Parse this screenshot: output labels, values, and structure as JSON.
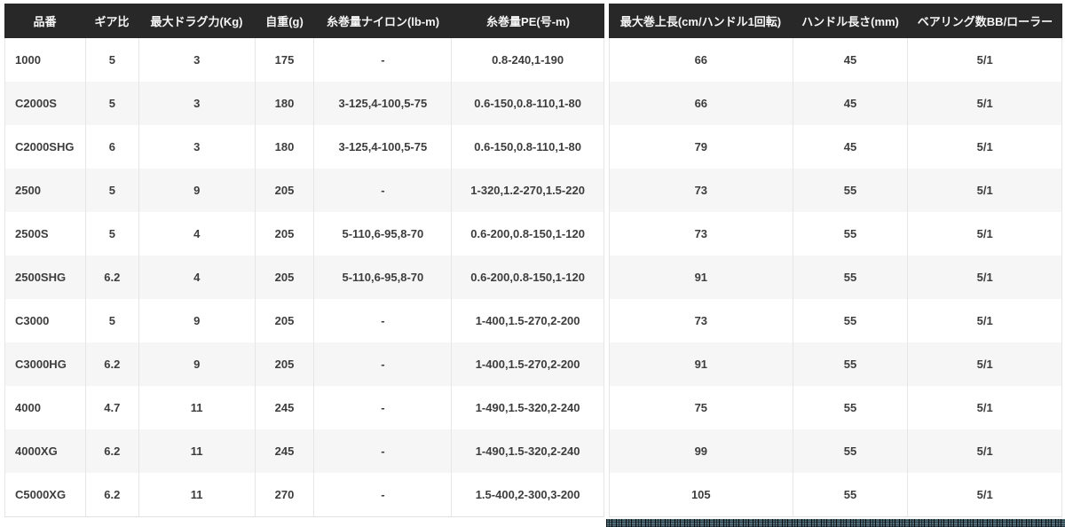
{
  "colors": {
    "header_bg": "#282828",
    "header_text": "#f5f5f5",
    "row_alt_bg": "#f6f6f6",
    "body_text": "#3d3d3d",
    "grid_border": "#e6e6e6",
    "noise_strip_base": "#54707c"
  },
  "left_table": {
    "columns": [
      {
        "key": "model",
        "label": "品番"
      },
      {
        "key": "gear_ratio",
        "label": "ギア比"
      },
      {
        "key": "max_drag_kg",
        "label": "最大ドラグ力(Kg)"
      },
      {
        "key": "weight_g",
        "label": "自重(g)"
      },
      {
        "key": "nylon_capacity_lb_m",
        "label": "糸巻量ナイロン(lb-m)"
      },
      {
        "key": "pe_capacity_go_m",
        "label": "糸巻量PE(号-m)"
      }
    ]
  },
  "right_table": {
    "columns": [
      {
        "key": "max_retrieve_cm",
        "label": "最大巻上長(cm/ハンドル1回転)"
      },
      {
        "key": "handle_length_mm",
        "label": "ハンドル長さ(mm)"
      },
      {
        "key": "bearings_bb_roller",
        "label": "ベアリング数BB/ローラー"
      }
    ]
  },
  "rows": [
    {
      "model": "1000",
      "gear_ratio": "5",
      "max_drag_kg": "3",
      "weight_g": "175",
      "nylon_capacity_lb_m": "-",
      "pe_capacity_go_m": "0.8-240,1-190",
      "max_retrieve_cm": "66",
      "handle_length_mm": "45",
      "bearings_bb_roller": "5/1"
    },
    {
      "model": "C2000S",
      "gear_ratio": "5",
      "max_drag_kg": "3",
      "weight_g": "180",
      "nylon_capacity_lb_m": "3-125,4-100,5-75",
      "pe_capacity_go_m": "0.6-150,0.8-110,1-80",
      "max_retrieve_cm": "66",
      "handle_length_mm": "45",
      "bearings_bb_roller": "5/1"
    },
    {
      "model": "C2000SHG",
      "gear_ratio": "6",
      "max_drag_kg": "3",
      "weight_g": "180",
      "nylon_capacity_lb_m": "3-125,4-100,5-75",
      "pe_capacity_go_m": "0.6-150,0.8-110,1-80",
      "max_retrieve_cm": "79",
      "handle_length_mm": "45",
      "bearings_bb_roller": "5/1"
    },
    {
      "model": "2500",
      "gear_ratio": "5",
      "max_drag_kg": "9",
      "weight_g": "205",
      "nylon_capacity_lb_m": "-",
      "pe_capacity_go_m": "1-320,1.2-270,1.5-220",
      "max_retrieve_cm": "73",
      "handle_length_mm": "55",
      "bearings_bb_roller": "5/1"
    },
    {
      "model": "2500S",
      "gear_ratio": "5",
      "max_drag_kg": "4",
      "weight_g": "205",
      "nylon_capacity_lb_m": "5-110,6-95,8-70",
      "pe_capacity_go_m": "0.6-200,0.8-150,1-120",
      "max_retrieve_cm": "73",
      "handle_length_mm": "55",
      "bearings_bb_roller": "5/1"
    },
    {
      "model": "2500SHG",
      "gear_ratio": "6.2",
      "max_drag_kg": "4",
      "weight_g": "205",
      "nylon_capacity_lb_m": "5-110,6-95,8-70",
      "pe_capacity_go_m": "0.6-200,0.8-150,1-120",
      "max_retrieve_cm": "91",
      "handle_length_mm": "55",
      "bearings_bb_roller": "5/1"
    },
    {
      "model": "C3000",
      "gear_ratio": "5",
      "max_drag_kg": "9",
      "weight_g": "205",
      "nylon_capacity_lb_m": "-",
      "pe_capacity_go_m": "1-400,1.5-270,2-200",
      "max_retrieve_cm": "73",
      "handle_length_mm": "55",
      "bearings_bb_roller": "5/1"
    },
    {
      "model": "C3000HG",
      "gear_ratio": "6.2",
      "max_drag_kg": "9",
      "weight_g": "205",
      "nylon_capacity_lb_m": "-",
      "pe_capacity_go_m": "1-400,1.5-270,2-200",
      "max_retrieve_cm": "91",
      "handle_length_mm": "55",
      "bearings_bb_roller": "5/1"
    },
    {
      "model": "4000",
      "gear_ratio": "4.7",
      "max_drag_kg": "11",
      "weight_g": "245",
      "nylon_capacity_lb_m": "-",
      "pe_capacity_go_m": "1-490,1.5-320,2-240",
      "max_retrieve_cm": "75",
      "handle_length_mm": "55",
      "bearings_bb_roller": "5/1"
    },
    {
      "model": "4000XG",
      "gear_ratio": "6.2",
      "max_drag_kg": "11",
      "weight_g": "245",
      "nylon_capacity_lb_m": "-",
      "pe_capacity_go_m": "1-490,1.5-320,2-240",
      "max_retrieve_cm": "99",
      "handle_length_mm": "55",
      "bearings_bb_roller": "5/1"
    },
    {
      "model": "C5000XG",
      "gear_ratio": "6.2",
      "max_drag_kg": "11",
      "weight_g": "270",
      "nylon_capacity_lb_m": "-",
      "pe_capacity_go_m": "1.5-400,2-300,3-200",
      "max_retrieve_cm": "105",
      "handle_length_mm": "55",
      "bearings_bb_roller": "5/1"
    }
  ]
}
